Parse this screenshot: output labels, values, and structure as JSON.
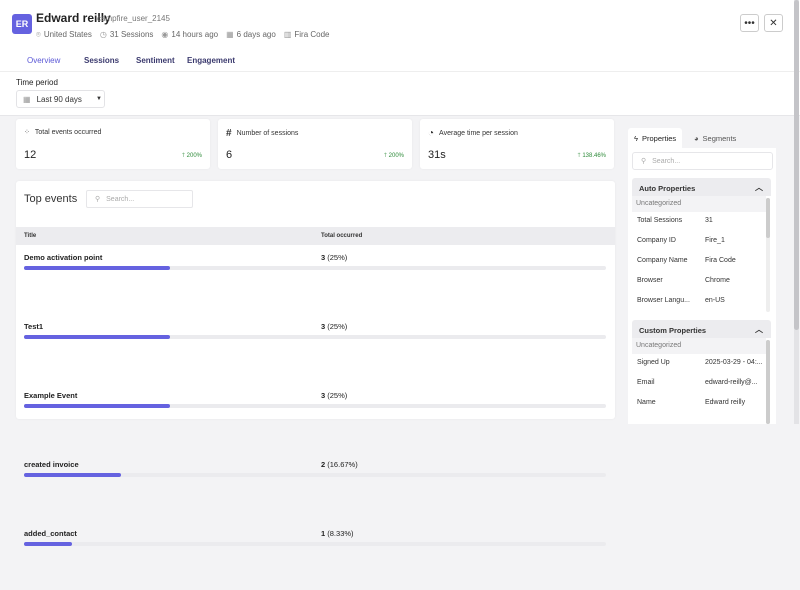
{
  "user": {
    "initials": "ER",
    "name": "Edward reilly",
    "username": "campfire_user_2145",
    "meta": [
      {
        "icon": "location-icon",
        "text": "United States"
      },
      {
        "icon": "clock-icon",
        "text": "31 Sessions"
      },
      {
        "icon": "eye-icon",
        "text": "14 hours ago"
      },
      {
        "icon": "calendar-icon",
        "text": "6 days ago"
      },
      {
        "icon": "building-icon",
        "text": "Fira Code"
      }
    ]
  },
  "actions": {
    "more": "•••",
    "close": "✕"
  },
  "tabs": [
    "Overview",
    "Sessions",
    "Sentiment",
    "Engagement"
  ],
  "time_period": {
    "label": "Time period",
    "value": "Last 90 days"
  },
  "stats": [
    {
      "title": "Total events occurred",
      "value": "12",
      "delta": "200%"
    },
    {
      "title": "Number of sessions",
      "value": "6",
      "delta": "200%"
    },
    {
      "title": "Average time per session",
      "value": "31s",
      "delta": "138.46%"
    }
  ],
  "top_events": {
    "title": "Top events",
    "search_placeholder": "Search...",
    "columns": [
      "Title",
      "Total occurred"
    ],
    "rows": [
      {
        "name": "Demo activation point",
        "count": "3",
        "pct_label": "(25%)",
        "pct": 25
      },
      {
        "name": "Test1",
        "count": "3",
        "pct_label": "(25%)",
        "pct": 25
      },
      {
        "name": "Example Event",
        "count": "3",
        "pct_label": "(25%)",
        "pct": 25
      },
      {
        "name": "created invoice",
        "count": "2",
        "pct_label": "(16.67%)",
        "pct": 16.67
      },
      {
        "name": "added_contact",
        "count": "1",
        "pct_label": "(8.33%)",
        "pct": 8.33
      }
    ]
  },
  "right_panel": {
    "tabs": [
      "Properties",
      "Segments"
    ],
    "search_placeholder": "Search...",
    "auto": {
      "title": "Auto Properties",
      "group": "Uncategorized",
      "rows": [
        [
          "Total Sessions",
          "31"
        ],
        [
          "Company ID",
          "Fire_1"
        ],
        [
          "Company Name",
          "Fira Code"
        ],
        [
          "Browser",
          "Chrome"
        ],
        [
          "Browser Langu...",
          "en-US"
        ]
      ]
    },
    "custom": {
      "title": "Custom Properties",
      "group": "Uncategorized",
      "rows": [
        [
          "Signed Up",
          "2025-03-29 - 04:..."
        ],
        [
          "Email",
          "edward-reilly@..."
        ],
        [
          "Name",
          "Edward reilly"
        ]
      ]
    }
  },
  "colors": {
    "accent": "#6562e0",
    "positive": "#2e8b3a"
  }
}
